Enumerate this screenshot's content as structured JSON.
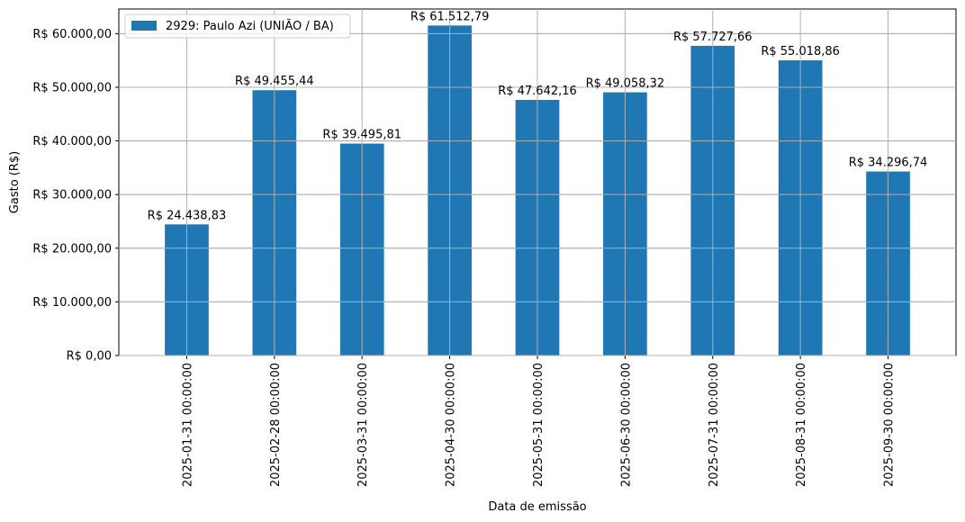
{
  "chart_data": {
    "type": "bar",
    "categories": [
      "2025-01-31 00:00:00",
      "2025-02-28 00:00:00",
      "2025-03-31 00:00:00",
      "2025-04-30 00:00:00",
      "2025-05-31 00:00:00",
      "2025-06-30 00:00:00",
      "2025-07-31 00:00:00",
      "2025-08-31 00:00:00",
      "2025-09-30 00:00:00"
    ],
    "series": [
      {
        "name": "2929: Paulo Azi (UNIÃO / BA)",
        "color": "#1f77b4",
        "values": [
          24438.83,
          49455.44,
          39495.81,
          61512.79,
          47642.16,
          49058.32,
          57727.66,
          55018.86,
          34296.74
        ],
        "labels": [
          "R$ 24.438,83",
          "R$ 49.455,44",
          "R$ 39.495,81",
          "R$ 61.512,79",
          "R$ 47.642,16",
          "R$ 49.058,32",
          "R$ 57.727,66",
          "R$ 55.018,86",
          "R$ 34.296,74"
        ]
      }
    ],
    "xlabel": "Data de emissão",
    "ylabel": "Gasto (R$)",
    "ylim": [
      0,
      64589
    ],
    "yticks": [
      0,
      10000,
      20000,
      30000,
      40000,
      50000,
      60000
    ],
    "ytick_labels": [
      "R$ 0,00",
      "R$ 10.000,00",
      "R$ 20.000,00",
      "R$ 30.000,00",
      "R$ 40.000,00",
      "R$ 50.000,00",
      "R$ 60.000,00"
    ],
    "grid": true,
    "legend_position": "top-left"
  }
}
